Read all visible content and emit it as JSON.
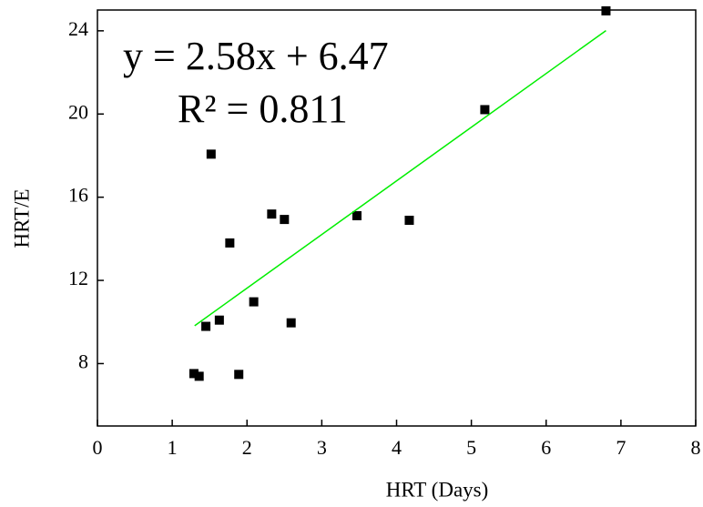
{
  "chart_data": {
    "type": "scatter",
    "x_label": "HRT (Days)",
    "y_label": "HRT/E",
    "annotations": [
      "y = 2.58x + 6.47",
      "R² = 0.811"
    ],
    "series": [
      {
        "type": "scatter",
        "color": "#000000",
        "x": [
          1.29,
          1.36,
          1.45,
          1.52,
          1.63,
          1.77,
          1.89,
          2.09,
          2.33,
          2.5,
          2.59,
          3.47,
          4.17,
          5.18,
          6.8
        ],
        "values": [
          7.52,
          7.39,
          9.79,
          18.07,
          10.09,
          13.8,
          7.48,
          10.97,
          15.19,
          14.93,
          9.96,
          15.11,
          14.89,
          20.21,
          24.96
        ]
      },
      {
        "type": "line",
        "color": "#00ee00",
        "x": [
          1.3,
          6.8
        ],
        "values": [
          9.82,
          24.01
        ]
      }
    ],
    "xlim": [
      0,
      8
    ],
    "xticks": [
      0,
      1,
      2,
      3,
      4,
      5,
      6,
      7,
      8
    ],
    "ylim": [
      5,
      25
    ],
    "yticks": [
      8,
      12,
      16,
      20,
      24
    ],
    "grid": false
  }
}
